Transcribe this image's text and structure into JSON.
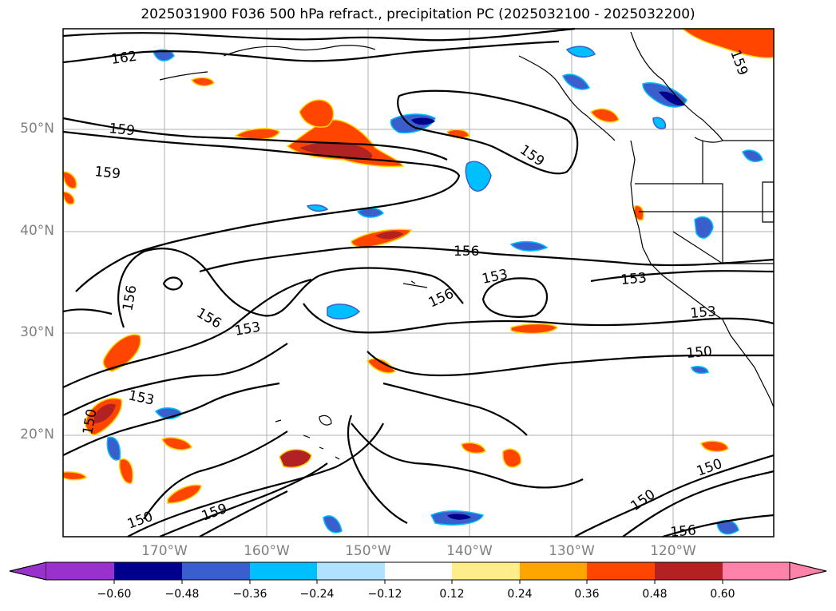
{
  "title": "2025031900 F036 500 hPa refract., precipitation PC (2025032100 - 2025032200)",
  "map": {
    "lat_labels": [
      "50°N",
      "40°N",
      "30°N",
      "20°N"
    ],
    "lon_labels": [
      "170°W",
      "160°W",
      "150°W",
      "140°W",
      "130°W",
      "120°W"
    ],
    "contour_labels": [
      "162",
      "159",
      "159",
      "159",
      "156",
      "156",
      "156",
      "156",
      "153",
      "153",
      "153",
      "153",
      "153",
      "150",
      "150",
      "150",
      "150",
      "159",
      "159",
      "156",
      "150"
    ],
    "colors": {
      "ocean": "#ffffff",
      "grid": "#b0b0b0",
      "coast": "#000000"
    }
  },
  "colorbar": {
    "ticks": [
      "−0.60",
      "−0.48",
      "−0.36",
      "−0.24",
      "−0.12",
      "0.12",
      "0.24",
      "0.36",
      "0.48",
      "0.60"
    ],
    "colors": [
      "#9932cc",
      "#00008b",
      "#3a5fcd",
      "#00bfff",
      "#b0e2ff",
      "#ffffff",
      "#ffec8b",
      "#ffa500",
      "#ff4500",
      "#b22222",
      "#ff82ab"
    ]
  }
}
